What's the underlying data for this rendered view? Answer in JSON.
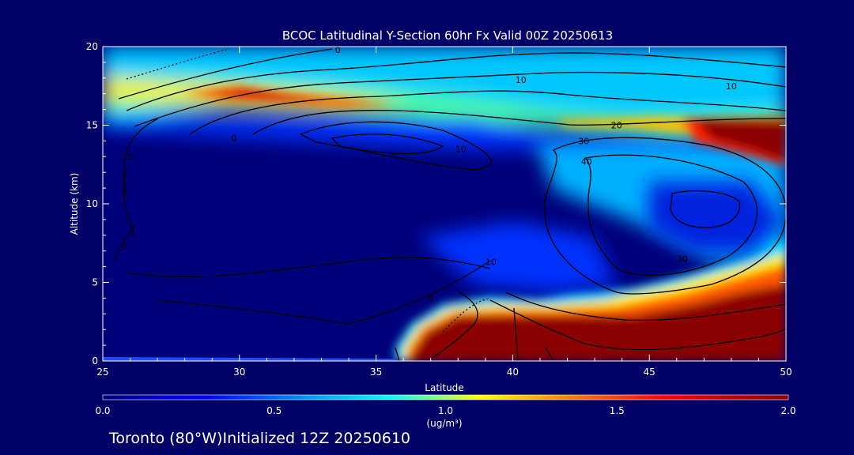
{
  "chart_data": {
    "type": "heatmap",
    "title": "BCOC Latitudinal Y-Section 60hr  Fx Valid 00Z 20250613",
    "xlabel": "Latitude",
    "ylabel": "Altitude (km)",
    "xlim": [
      25,
      50
    ],
    "ylim": [
      0,
      20
    ],
    "xticks": [
      "25",
      "30",
      "35",
      "40",
      "45",
      "50"
    ],
    "yticks": [
      "0",
      "5",
      "10",
      "15",
      "20"
    ],
    "colorbar": {
      "range": [
        0.0,
        2.0
      ],
      "ticks": [
        "0.0",
        "0.5",
        "1.0",
        "1.5",
        "2.0"
      ],
      "units": "(ug/m³)",
      "colors": [
        "#00007a",
        "#0000ff",
        "#0099ff",
        "#00ffff",
        "#ffff00",
        "#ff8000",
        "#ff0000",
        "#8b0000"
      ]
    },
    "contour_labels": [
      {
        "text": "0",
        "x": 33.6,
        "y": 19.8
      },
      {
        "text": "10",
        "x": 40.3,
        "y": 17.9
      },
      {
        "text": "10",
        "x": 48.0,
        "y": 17.5
      },
      {
        "text": "20",
        "x": 43.8,
        "y": 15.0
      },
      {
        "text": "30",
        "x": 42.6,
        "y": 14.0
      },
      {
        "text": "40",
        "x": 42.7,
        "y": 12.7
      },
      {
        "text": "10",
        "x": 38.1,
        "y": 13.5
      },
      {
        "text": "0",
        "x": 29.8,
        "y": 14.2
      },
      {
        "text": "0",
        "x": 26.0,
        "y": 13.0
      },
      {
        "text": "0",
        "x": 25.8,
        "y": 7.3
      },
      {
        "text": "10",
        "x": 39.2,
        "y": 6.3
      },
      {
        "text": "30",
        "x": 46.2,
        "y": 6.5
      },
      {
        "text": "0",
        "x": 37.0,
        "y": 4.0
      }
    ],
    "high_concentration_regions": [
      {
        "description": "surface to ~3-4 km layer",
        "lat_range": [
          36,
          50
        ],
        "alt_range": [
          0,
          4
        ],
        "value": "2.0+"
      },
      {
        "description": "upper layer",
        "lat_range": [
          45,
          50
        ],
        "alt_range": [
          13,
          15
        ],
        "value": "2.0+"
      },
      {
        "description": "elevated layer",
        "lat_range": [
          29,
          36
        ],
        "alt_range": [
          16,
          18
        ],
        "value": "1.7-2.0"
      }
    ]
  },
  "footer": {
    "caption": "Toronto (80°W)Initialized 12Z 20250610"
  }
}
